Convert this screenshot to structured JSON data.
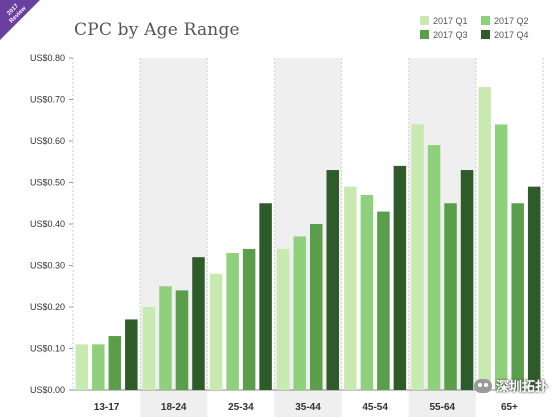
{
  "badge": {
    "year": "2017",
    "subtitle": "Review"
  },
  "watermark": {
    "text": "深圳拓扑"
  },
  "colors": {
    "q1": "#c8eab0",
    "q2": "#8fd07c",
    "q3": "#5a9e4c",
    "q4": "#2f5a2a",
    "shade": "#efefef"
  },
  "chart_data": {
    "type": "bar",
    "title": "CPC by Age Range",
    "xlabel": "",
    "ylabel": "",
    "categories": [
      "13-17",
      "18-24",
      "25-34",
      "35-44",
      "45-54",
      "55-64",
      "65+"
    ],
    "series": [
      {
        "name": "2017 Q1",
        "values": [
          0.11,
          0.2,
          0.28,
          0.34,
          0.49,
          0.64,
          0.73
        ]
      },
      {
        "name": "2017 Q2",
        "values": [
          0.11,
          0.25,
          0.33,
          0.37,
          0.47,
          0.59,
          0.64
        ]
      },
      {
        "name": "2017 Q3",
        "values": [
          0.13,
          0.24,
          0.34,
          0.4,
          0.43,
          0.45,
          0.45
        ]
      },
      {
        "name": "2017 Q4",
        "values": [
          0.17,
          0.32,
          0.45,
          0.53,
          0.54,
          0.53,
          0.49
        ]
      }
    ],
    "ylim": [
      0,
      0.8
    ],
    "yticks": [
      {
        "value": 0.0,
        "label": "US$0.00"
      },
      {
        "value": 0.1,
        "label": "US$0.10"
      },
      {
        "value": 0.2,
        "label": "US$0.20"
      },
      {
        "value": 0.3,
        "label": "US$0.30"
      },
      {
        "value": 0.4,
        "label": "US$0.40"
      },
      {
        "value": 0.5,
        "label": "US$0.50"
      },
      {
        "value": 0.6,
        "label": "US$0.60"
      },
      {
        "value": 0.7,
        "label": "US$0.70"
      },
      {
        "value": 0.8,
        "label": "US$0.80"
      }
    ],
    "legend_position": "top-right",
    "grid": "vertical-dashed",
    "shaded_categories": [
      "18-24",
      "35-44",
      "55-64"
    ]
  }
}
